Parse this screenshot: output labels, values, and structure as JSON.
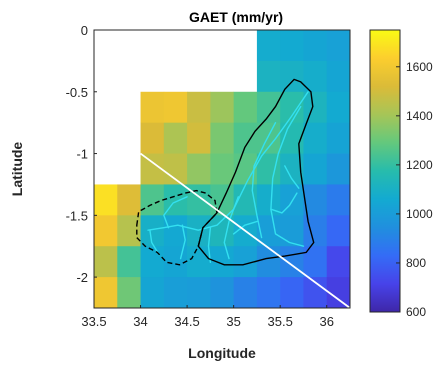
{
  "chart_data": {
    "type": "heatmap",
    "title": "GAET (mm/yr)",
    "xlabel": "Longitude",
    "ylabel": "Latitude",
    "xlim": [
      33.5,
      36.25
    ],
    "ylim": [
      -2.25,
      0
    ],
    "x_ticks": [
      33.5,
      34,
      34.5,
      35,
      35.5,
      36
    ],
    "y_ticks": [
      0,
      -0.5,
      -1,
      -1.5,
      -2
    ],
    "x_tick_labels": [
      "33.5",
      "34",
      "34.5",
      "35",
      "35.5",
      "36"
    ],
    "y_tick_labels": [
      "0",
      "-0.5",
      "-1",
      "-1.5",
      "-2"
    ],
    "grid": {
      "x0": 33.5,
      "y0": 0,
      "dx": 0.25,
      "dy": -0.25,
      "cols": 11,
      "rows": 9,
      "values": [
        [
          null,
          null,
          null,
          null,
          null,
          null,
          null,
          1070,
          1060,
          1040,
          1020
        ],
        [
          null,
          null,
          null,
          null,
          null,
          null,
          null,
          1110,
          1100,
          1080,
          1040
        ],
        [
          null,
          null,
          1580,
          1590,
          1480,
          1390,
          1290,
          1230,
          1180,
          1120,
          1060
        ],
        [
          null,
          null,
          1520,
          1420,
          1500,
          1330,
          1250,
          1250,
          1160,
          1080,
          1030
        ],
        [
          null,
          null,
          1470,
          1460,
          1370,
          1300,
          1270,
          1190,
          1110,
          1040,
          980
        ],
        [
          1680,
          1530,
          1250,
          1180,
          1200,
          1240,
          1150,
          1080,
          1020,
          930,
          880
        ],
        [
          1600,
          1440,
          1090,
          1050,
          1100,
          1130,
          1070,
          1010,
          1000,
          890,
          820
        ],
        [
          1450,
          1230,
          1060,
          1040,
          1070,
          1050,
          1020,
          940,
          900,
          850,
          730
        ],
        [
          1590,
          1310,
          1040,
          1010,
          1000,
          960,
          900,
          860,
          810,
          760,
          700
        ]
      ]
    },
    "colorbar": {
      "min": 600,
      "max": 1750,
      "ticks": [
        600,
        800,
        1000,
        1200,
        1400,
        1600
      ],
      "tick_labels": [
        "600",
        "800",
        "1000",
        "1200",
        "1400",
        "1600"
      ],
      "colormap": "parula"
    },
    "annotations": {
      "diagonal_line": {
        "from": [
          34,
          -1
        ],
        "to": [
          36.25,
          -2.25
        ],
        "color": "#ffffff"
      },
      "basin_outline_solid": [
        [
          34.67,
          -1.6
        ],
        [
          34.82,
          -1.48
        ],
        [
          34.92,
          -1.32
        ],
        [
          35.02,
          -1.15
        ],
        [
          35.12,
          -0.95
        ],
        [
          35.23,
          -0.82
        ],
        [
          35.35,
          -0.72
        ],
        [
          35.45,
          -0.62
        ],
        [
          35.55,
          -0.48
        ],
        [
          35.65,
          -0.4
        ],
        [
          35.72,
          -0.42
        ],
        [
          35.83,
          -0.5
        ],
        [
          35.85,
          -0.62
        ],
        [
          35.78,
          -0.76
        ],
        [
          35.7,
          -0.92
        ],
        [
          35.72,
          -1.15
        ],
        [
          35.76,
          -1.35
        ],
        [
          35.8,
          -1.55
        ],
        [
          35.86,
          -1.72
        ],
        [
          35.78,
          -1.8
        ],
        [
          35.55,
          -1.83
        ],
        [
          35.35,
          -1.85
        ],
        [
          35.1,
          -1.9
        ],
        [
          34.9,
          -1.9
        ],
        [
          34.73,
          -1.85
        ],
        [
          34.62,
          -1.75
        ],
        [
          34.67,
          -1.6
        ]
      ],
      "basin_outline_dashed": [
        [
          33.96,
          -1.58
        ],
        [
          33.98,
          -1.47
        ],
        [
          34.1,
          -1.42
        ],
        [
          34.22,
          -1.38
        ],
        [
          34.35,
          -1.35
        ],
        [
          34.48,
          -1.32
        ],
        [
          34.6,
          -1.3
        ],
        [
          34.7,
          -1.32
        ],
        [
          34.8,
          -1.38
        ],
        [
          34.82,
          -1.48
        ],
        [
          34.67,
          -1.6
        ],
        [
          34.62,
          -1.75
        ],
        [
          34.55,
          -1.85
        ],
        [
          34.42,
          -1.9
        ],
        [
          34.28,
          -1.88
        ],
        [
          34.18,
          -1.8
        ],
        [
          34.05,
          -1.75
        ],
        [
          33.96,
          -1.68
        ],
        [
          33.96,
          -1.58
        ]
      ],
      "river_color": "#33e0f0",
      "rivers": [
        [
          [
            35.8,
            -0.5
          ],
          [
            35.62,
            -0.7
          ],
          [
            35.45,
            -0.88
          ],
          [
            35.3,
            -1.02
          ],
          [
            35.15,
            -1.22
          ],
          [
            35.0,
            -1.45
          ],
          [
            34.82,
            -1.58
          ],
          [
            34.62,
            -1.62
          ],
          [
            34.4,
            -1.58
          ],
          [
            34.25,
            -1.6
          ],
          [
            34.08,
            -1.62
          ]
        ],
        [
          [
            35.72,
            -0.62
          ],
          [
            35.58,
            -0.8
          ],
          [
            35.48,
            -1.0
          ],
          [
            35.42,
            -1.2
          ],
          [
            35.4,
            -1.45
          ],
          [
            35.45,
            -1.65
          ],
          [
            35.6,
            -1.72
          ],
          [
            35.75,
            -1.75
          ]
        ],
        [
          [
            35.45,
            -0.75
          ],
          [
            35.33,
            -0.92
          ],
          [
            35.22,
            -1.1
          ],
          [
            35.2,
            -1.3
          ],
          [
            35.25,
            -1.5
          ],
          [
            35.3,
            -1.68
          ]
        ],
        [
          [
            35.05,
            -1.35
          ],
          [
            34.95,
            -1.55
          ],
          [
            34.9,
            -1.72
          ],
          [
            34.95,
            -1.85
          ]
        ],
        [
          [
            35.4,
            -1.45
          ],
          [
            35.52,
            -1.48
          ],
          [
            35.6,
            -1.42
          ],
          [
            35.68,
            -1.32
          ]
        ],
        [
          [
            35.25,
            -1.55
          ],
          [
            35.12,
            -1.58
          ],
          [
            35.0,
            -1.65
          ]
        ],
        [
          [
            34.75,
            -1.6
          ],
          [
            34.73,
            -1.75
          ],
          [
            34.75,
            -1.88
          ]
        ],
        [
          [
            34.45,
            -1.58
          ],
          [
            34.48,
            -1.7
          ],
          [
            34.43,
            -1.85
          ]
        ],
        [
          [
            34.3,
            -1.6
          ],
          [
            34.25,
            -1.5
          ],
          [
            34.35,
            -1.4
          ],
          [
            34.5,
            -1.35
          ]
        ],
        [
          [
            34.1,
            -1.62
          ],
          [
            34.12,
            -1.72
          ],
          [
            34.2,
            -1.82
          ]
        ],
        [
          [
            35.55,
            -1.1
          ],
          [
            35.62,
            -1.2
          ],
          [
            35.7,
            -1.28
          ]
        ]
      ]
    }
  }
}
